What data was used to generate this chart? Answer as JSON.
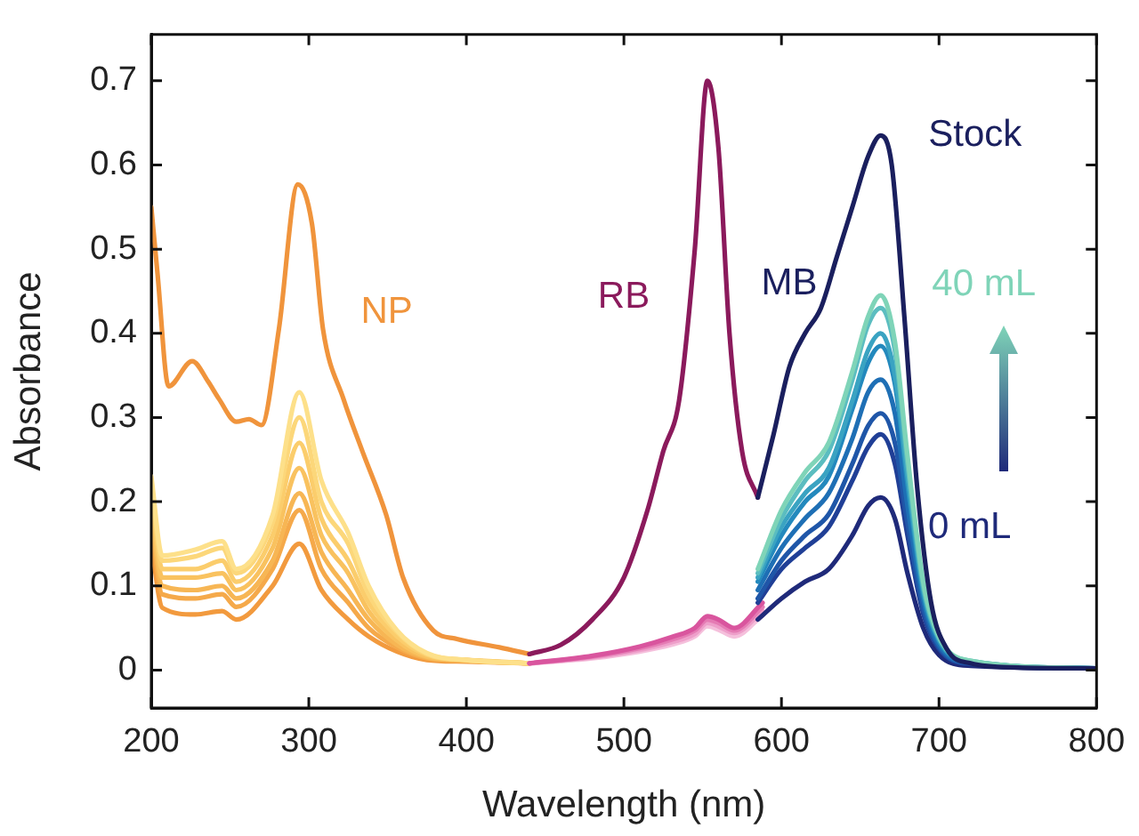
{
  "chart_data": {
    "type": "line",
    "xlabel": "Wavelength (nm)",
    "ylabel": "Absorbance",
    "xlim": [
      200,
      800
    ],
    "ylim": [
      -0.045,
      0.755
    ],
    "xticks": [
      200,
      300,
      400,
      500,
      600,
      700,
      800
    ],
    "yticks": [
      0,
      0.1,
      0.2,
      0.3,
      0.4,
      0.5,
      0.6,
      0.7
    ],
    "marker": "none",
    "line_style": "solid",
    "series": [
      {
        "color": "#f29a3e",
        "x": [
          200,
          207,
          228,
          245,
          254,
          277,
          294,
          308,
          325,
          338,
          356,
          375,
          400,
          440
        ],
        "values": [
          0.15,
          0.074,
          0.066,
          0.07,
          0.06,
          0.1,
          0.15,
          0.095,
          0.06,
          0.04,
          0.022,
          0.012,
          0.01,
          0.008
        ]
      },
      {
        "color": "#f5a94a",
        "x": [
          200,
          207,
          228,
          245,
          254,
          277,
          294,
          308,
          325,
          338,
          356,
          375,
          400,
          440
        ],
        "values": [
          0.17,
          0.09,
          0.085,
          0.09,
          0.075,
          0.12,
          0.19,
          0.12,
          0.08,
          0.05,
          0.027,
          0.014,
          0.011,
          0.008
        ]
      },
      {
        "color": "#f7b654",
        "x": [
          200,
          207,
          228,
          245,
          254,
          277,
          294,
          308,
          325,
          338,
          356,
          375,
          400,
          440
        ],
        "values": [
          0.18,
          0.1,
          0.095,
          0.1,
          0.085,
          0.13,
          0.21,
          0.14,
          0.095,
          0.06,
          0.03,
          0.015,
          0.011,
          0.008
        ]
      },
      {
        "color": "#f9c25f",
        "x": [
          200,
          207,
          228,
          245,
          254,
          277,
          294,
          308,
          325,
          338,
          356,
          375,
          400,
          440
        ],
        "values": [
          0.19,
          0.11,
          0.11,
          0.115,
          0.095,
          0.145,
          0.24,
          0.16,
          0.115,
          0.07,
          0.035,
          0.016,
          0.012,
          0.008
        ]
      },
      {
        "color": "#fbcd6c",
        "x": [
          200,
          207,
          228,
          245,
          254,
          277,
          294,
          308,
          325,
          338,
          356,
          375,
          400,
          440
        ],
        "values": [
          0.21,
          0.12,
          0.12,
          0.13,
          0.105,
          0.16,
          0.27,
          0.18,
          0.13,
          0.08,
          0.04,
          0.018,
          0.012,
          0.008
        ]
      },
      {
        "color": "#fcd77a",
        "x": [
          200,
          207,
          228,
          245,
          254,
          277,
          294,
          308,
          325,
          338,
          356,
          375,
          400,
          440
        ],
        "values": [
          0.22,
          0.13,
          0.135,
          0.145,
          0.115,
          0.175,
          0.3,
          0.2,
          0.15,
          0.09,
          0.045,
          0.019,
          0.012,
          0.008
        ]
      },
      {
        "color": "#fde08a",
        "x": [
          200,
          207,
          228,
          245,
          254,
          277,
          294,
          308,
          325,
          338,
          356,
          375,
          400,
          440
        ],
        "values": [
          0.23,
          0.136,
          0.143,
          0.153,
          0.12,
          0.184,
          0.33,
          0.225,
          0.163,
          0.1,
          0.047,
          0.02,
          0.012,
          0.008
        ]
      },
      {
        "name": "NP",
        "color": "#f0943c",
        "x": [
          200,
          204,
          211,
          226,
          236,
          243,
          254,
          262,
          270,
          281,
          293,
          302,
          309,
          322,
          334,
          349,
          360,
          379,
          394,
          421,
          440
        ],
        "values": [
          0.55,
          0.47,
          0.337,
          0.367,
          0.343,
          0.322,
          0.295,
          0.298,
          0.291,
          0.405,
          0.577,
          0.53,
          0.405,
          0.322,
          0.26,
          0.185,
          0.109,
          0.047,
          0.037,
          0.027,
          0.019
        ]
      },
      {
        "color": "#f5c0dc",
        "x": [
          440,
          480,
          510,
          530,
          545,
          553,
          560,
          570,
          588
        ],
        "values": [
          0.008,
          0.014,
          0.022,
          0.03,
          0.04,
          0.052,
          0.048,
          0.04,
          0.065
        ]
      },
      {
        "color": "#ee9fca",
        "x": [
          440,
          480,
          510,
          530,
          545,
          553,
          560,
          570,
          588
        ],
        "values": [
          0.008,
          0.015,
          0.024,
          0.033,
          0.043,
          0.056,
          0.052,
          0.044,
          0.07
        ]
      },
      {
        "color": "#e57bb4",
        "x": [
          440,
          480,
          510,
          530,
          545,
          553,
          560,
          570,
          588
        ],
        "values": [
          0.008,
          0.016,
          0.026,
          0.036,
          0.047,
          0.06,
          0.056,
          0.047,
          0.075
        ]
      },
      {
        "color": "#d9559e",
        "x": [
          440,
          480,
          510,
          530,
          545,
          553,
          560,
          570,
          588
        ],
        "values": [
          0.008,
          0.017,
          0.028,
          0.039,
          0.05,
          0.064,
          0.06,
          0.05,
          0.08
        ]
      },
      {
        "name": "RB",
        "color": "#8b1a5c",
        "x": [
          440,
          460,
          480,
          500,
          515,
          525,
          535,
          545,
          553,
          560,
          567,
          575,
          585
        ],
        "values": [
          0.019,
          0.03,
          0.06,
          0.11,
          0.19,
          0.26,
          0.32,
          0.5,
          0.7,
          0.62,
          0.4,
          0.26,
          0.205
        ]
      },
      {
        "name": "0 mL",
        "color": "#1f2a7a",
        "x": [
          585,
          600,
          615,
          630,
          645,
          655,
          663,
          672,
          680,
          690,
          700,
          720,
          800
        ],
        "values": [
          0.06,
          0.085,
          0.105,
          0.12,
          0.16,
          0.195,
          0.205,
          0.18,
          0.115,
          0.05,
          0.018,
          0.005,
          0.002
        ]
      },
      {
        "color": "#203f96",
        "x": [
          585,
          600,
          615,
          630,
          645,
          655,
          663,
          672,
          680,
          690,
          700,
          720,
          800
        ],
        "values": [
          0.08,
          0.12,
          0.145,
          0.17,
          0.225,
          0.265,
          0.28,
          0.245,
          0.16,
          0.067,
          0.025,
          0.007,
          0.002
        ]
      },
      {
        "color": "#1f56a8",
        "x": [
          585,
          600,
          615,
          630,
          645,
          655,
          663,
          672,
          680,
          690,
          700,
          720,
          800
        ],
        "values": [
          0.085,
          0.13,
          0.16,
          0.185,
          0.245,
          0.29,
          0.305,
          0.27,
          0.175,
          0.073,
          0.027,
          0.008,
          0.002
        ]
      },
      {
        "color": "#1e6fb5",
        "x": [
          585,
          600,
          615,
          630,
          645,
          655,
          663,
          672,
          680,
          690,
          700,
          720,
          800
        ],
        "values": [
          0.095,
          0.145,
          0.18,
          0.21,
          0.275,
          0.33,
          0.345,
          0.305,
          0.195,
          0.083,
          0.03,
          0.009,
          0.002
        ]
      },
      {
        "color": "#2389bd",
        "x": [
          585,
          600,
          615,
          630,
          645,
          655,
          663,
          672,
          680,
          690,
          700,
          720,
          800
        ],
        "values": [
          0.105,
          0.16,
          0.2,
          0.23,
          0.31,
          0.365,
          0.385,
          0.34,
          0.22,
          0.09,
          0.034,
          0.01,
          0.002
        ]
      },
      {
        "color": "#3aa3c2",
        "x": [
          585,
          600,
          615,
          630,
          645,
          655,
          663,
          672,
          680,
          690,
          700,
          720,
          800
        ],
        "values": [
          0.11,
          0.17,
          0.21,
          0.24,
          0.32,
          0.38,
          0.4,
          0.35,
          0.23,
          0.095,
          0.036,
          0.01,
          0.002
        ]
      },
      {
        "color": "#5bbdc0",
        "x": [
          585,
          600,
          615,
          630,
          645,
          655,
          663,
          672,
          680,
          690,
          700,
          720,
          800
        ],
        "values": [
          0.115,
          0.18,
          0.225,
          0.26,
          0.345,
          0.41,
          0.43,
          0.38,
          0.245,
          0.1,
          0.038,
          0.011,
          0.002
        ]
      },
      {
        "name": "40 mL",
        "color": "#7fd4b8",
        "x": [
          585,
          600,
          615,
          630,
          645,
          655,
          663,
          672,
          680,
          690,
          700,
          720,
          800
        ],
        "values": [
          0.12,
          0.19,
          0.235,
          0.27,
          0.355,
          0.42,
          0.445,
          0.39,
          0.255,
          0.105,
          0.04,
          0.011,
          0.002
        ]
      },
      {
        "name": "Stock",
        "color": "#1a1f5e",
        "x": [
          585,
          595,
          605,
          615,
          625,
          635,
          645,
          655,
          663,
          670,
          678,
          686,
          695,
          705,
          720,
          750,
          800
        ],
        "values": [
          0.205,
          0.28,
          0.36,
          0.4,
          0.43,
          0.49,
          0.55,
          0.61,
          0.635,
          0.6,
          0.42,
          0.22,
          0.08,
          0.025,
          0.008,
          0.003,
          0.002
        ]
      }
    ],
    "annotations": [
      "MB"
    ]
  }
}
